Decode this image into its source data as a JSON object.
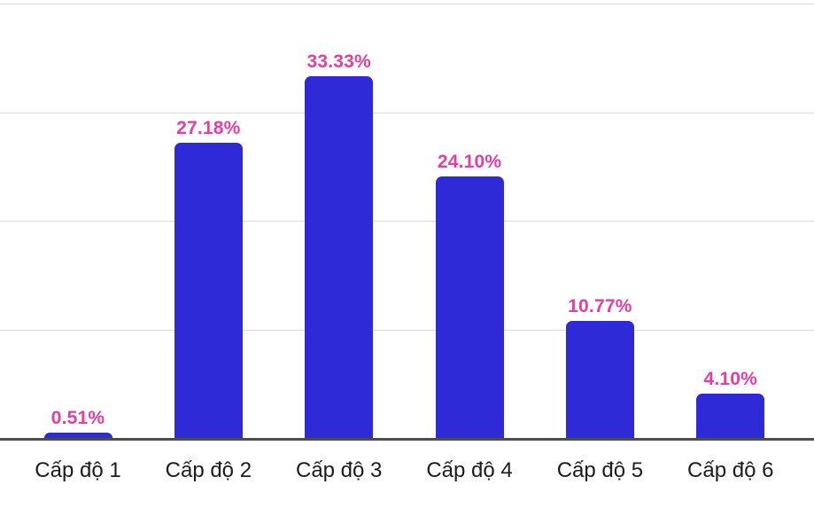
{
  "chart_data": {
    "type": "bar",
    "title": "",
    "xlabel": "",
    "ylabel": "",
    "categories": [
      "Cấp độ 1",
      "Cấp độ 2",
      "Cấp độ 3",
      "Cấp độ 4",
      "Cấp độ 5",
      "Cấp độ 6"
    ],
    "values": [
      0.51,
      27.18,
      33.33,
      24.1,
      10.77,
      4.1
    ],
    "value_labels": [
      "0.51%",
      "27.18%",
      "33.33%",
      "24.10%",
      "10.77%",
      "4.10%"
    ],
    "ylim": [
      0,
      40
    ],
    "gridline_step": 10,
    "grid": true,
    "legend": false,
    "y_axis_tick_labels_visible": false,
    "colors": {
      "bar": "#2E2AD8",
      "value_label": "#EA3C9E",
      "gridline": "#DBDBDB",
      "axis_line": "#4D4D4D",
      "category_label": "#1C1C1C",
      "background": "#FFFFFF"
    }
  }
}
